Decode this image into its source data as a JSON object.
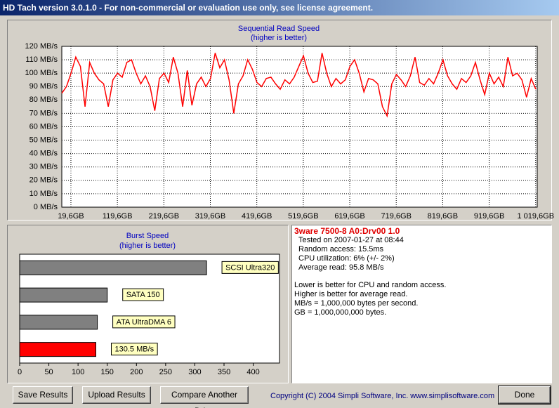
{
  "title": "HD Tach version 3.0.1.0  - For non-commercial or evaluation use only, see license agreement.",
  "chart_data": [
    {
      "type": "line",
      "title": "Sequential Read Speed",
      "subtitle": "(higher is better)",
      "color": "#ff0000",
      "grid": true,
      "x": [
        0,
        10,
        20,
        30,
        40,
        50,
        60,
        70,
        80,
        90,
        100,
        110,
        120,
        130,
        140,
        150,
        160,
        170,
        180,
        190,
        200,
        210,
        220,
        230,
        240,
        250,
        260,
        270,
        280,
        290,
        300,
        310,
        320,
        330,
        340,
        350,
        360,
        370,
        380,
        390,
        400,
        410,
        420,
        430,
        440,
        450,
        460,
        470,
        480,
        490,
        500,
        510,
        520,
        530,
        540,
        550,
        560,
        570,
        580,
        590,
        600,
        610,
        620,
        630,
        640,
        650,
        660,
        670,
        680,
        690,
        700,
        710,
        720,
        730,
        740,
        750,
        760,
        770,
        780,
        790,
        800,
        810,
        820,
        830,
        840,
        850,
        860,
        870,
        880,
        890,
        900,
        910,
        920,
        930,
        940,
        950,
        960,
        970,
        980,
        990,
        1000,
        1010,
        1020
      ],
      "values": [
        85,
        90,
        100,
        112,
        105,
        75,
        108,
        100,
        95,
        92,
        75,
        95,
        100,
        97,
        108,
        110,
        100,
        92,
        98,
        90,
        72,
        96,
        100,
        93,
        112,
        100,
        75,
        102,
        76,
        92,
        97,
        90,
        96,
        115,
        104,
        110,
        95,
        70,
        92,
        98,
        110,
        103,
        93,
        90,
        96,
        97,
        92,
        88,
        95,
        92,
        97,
        105,
        113,
        100,
        93,
        94,
        115,
        100,
        90,
        96,
        92,
        95,
        105,
        110,
        100,
        86,
        96,
        95,
        92,
        75,
        68,
        92,
        99,
        95,
        90,
        98,
        112,
        93,
        91,
        96,
        92,
        100,
        110,
        98,
        92,
        88,
        96,
        93,
        98,
        108,
        95,
        84,
        100,
        92,
        97,
        90,
        112,
        98,
        100,
        95,
        82,
        96,
        88
      ],
      "xlim": [
        0,
        1023
      ],
      "xticks": [
        {
          "value": 19.6,
          "label": "19,6GB"
        },
        {
          "value": 119.6,
          "label": "119,6GB"
        },
        {
          "value": 219.6,
          "label": "219,6GB"
        },
        {
          "value": 319.6,
          "label": "319,6GB"
        },
        {
          "value": 419.6,
          "label": "419,6GB"
        },
        {
          "value": 519.6,
          "label": "519,6GB"
        },
        {
          "value": 619.6,
          "label": "619,6GB"
        },
        {
          "value": 719.6,
          "label": "719,6GB"
        },
        {
          "value": 819.6,
          "label": "819,6GB"
        },
        {
          "value": 919.6,
          "label": "919,6GB"
        },
        {
          "value": 1019.6,
          "label": "1 019,6GB"
        }
      ],
      "ylim": [
        0,
        120
      ],
      "yticks": [
        {
          "value": 0,
          "label": "0 MB/s"
        },
        {
          "value": 10,
          "label": "10 MB/s"
        },
        {
          "value": 20,
          "label": "20 MB/s"
        },
        {
          "value": 30,
          "label": "30 MB/s"
        },
        {
          "value": 40,
          "label": "40 MB/s"
        },
        {
          "value": 50,
          "label": "50 MB/s"
        },
        {
          "value": 60,
          "label": "60 MB/s"
        },
        {
          "value": 70,
          "label": "70 MB/s"
        },
        {
          "value": 80,
          "label": "80 MB/s"
        },
        {
          "value": 90,
          "label": "90 MB/s"
        },
        {
          "value": 100,
          "label": "100 MB/s"
        },
        {
          "value": 110,
          "label": "110 MB/s"
        },
        {
          "value": 120,
          "label": "120 MB/s"
        }
      ]
    },
    {
      "type": "hbar",
      "title": "Burst Speed",
      "subtitle": "(higher is better)",
      "categories": [
        "SCSI Ultra320",
        "SATA 150",
        "ATA UltraDMA 6",
        null
      ],
      "values": [
        320,
        150,
        133,
        130.5
      ],
      "value_labels": [
        null,
        null,
        null,
        "130.5 MB/s"
      ],
      "colors": [
        "#808080",
        "#808080",
        "#808080",
        "#ff0000"
      ],
      "xlim": [
        0,
        445
      ],
      "xticks": [
        0,
        50,
        100,
        150,
        200,
        250,
        300,
        350,
        400
      ]
    }
  ],
  "info": {
    "drive": "3ware 7500-8 A0:Drv00 1.0",
    "lines": [
      "Tested on 2007-01-27 at 08:44",
      "Random access: 15.5ms",
      "CPU utilization: 6% (+/- 2%)",
      "Average read: 95.8 MB/s"
    ],
    "notes": [
      "Lower is better for CPU and random access.",
      "Higher is better for average read.",
      "MB/s = 1,000,000 bytes per second.",
      "GB = 1,000,000,000 bytes."
    ]
  },
  "buttons": [
    "Save Results",
    "Upload Results",
    "Compare Another Drive",
    "Done"
  ],
  "copyright": "Copyright (C) 2004 Simpli Software, Inc. www.simplisoftware.com"
}
